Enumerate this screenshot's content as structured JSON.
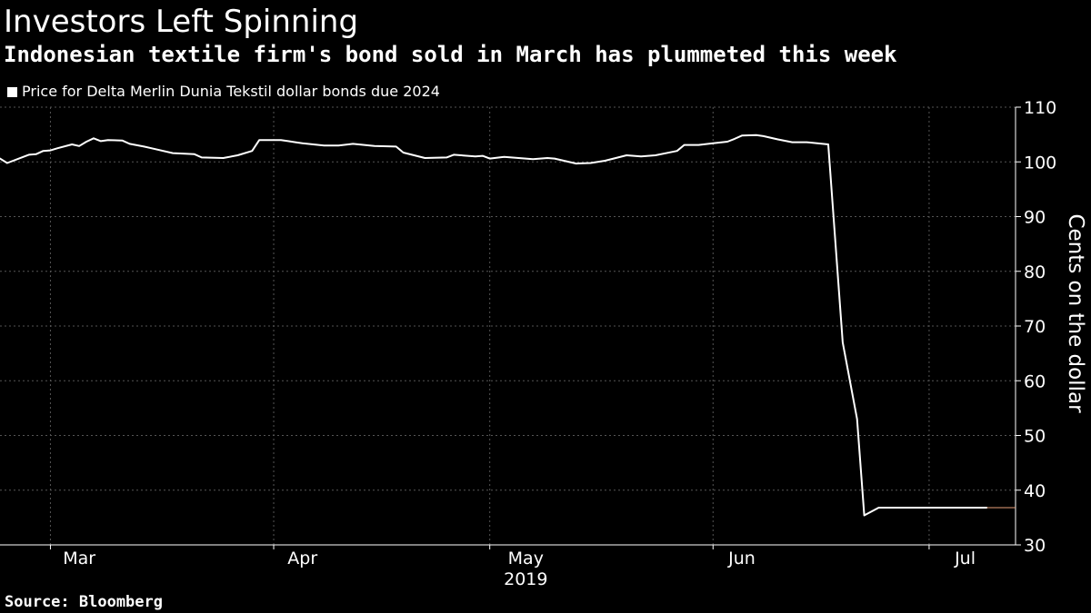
{
  "title": "Investors Left Spinning",
  "subtitle": "Indonesian textile firm's bond sold in March has plummeted this week",
  "source": "Source: Bloomberg",
  "colors": {
    "background": "#000000",
    "line": "#ffffff",
    "grid": "#555555",
    "last_marker": "#e8a07a"
  },
  "chart_data": {
    "type": "line",
    "title": "Investors Left Spinning",
    "subtitle": "Indonesian textile firm's bond sold in March has plummeted this week",
    "xlabel": "2019",
    "ylabel": "Cents on the dollar",
    "ylim": [
      30,
      110
    ],
    "yticks": [
      30,
      40,
      50,
      60,
      70,
      80,
      90,
      100,
      110
    ],
    "xlim": [
      "2019-02-22",
      "2019-07-13"
    ],
    "xtick_labels": [
      {
        "label": "Mar",
        "date": "2019-03-05"
      },
      {
        "label": "Apr",
        "date": "2019-04-05"
      },
      {
        "label": "May",
        "date": "2019-05-06"
      },
      {
        "label": "Jun",
        "date": "2019-06-05"
      },
      {
        "label": "Jul",
        "date": "2019-07-06"
      }
    ],
    "gridlines_x": [
      "2019-03-01",
      "2019-04-01",
      "2019-05-01",
      "2019-06-01",
      "2019-07-01"
    ],
    "year_label": "2019",
    "grid": true,
    "legend_position": "top-left",
    "series": [
      {
        "name": "Price for Delta Merlin Dunia Tekstil dollar bonds due 2024",
        "x": [
          "2019-02-22",
          "2019-02-23",
          "2019-02-25",
          "2019-02-26",
          "2019-02-27",
          "2019-02-28",
          "2019-03-01",
          "2019-03-02",
          "2019-03-04",
          "2019-03-05",
          "2019-03-06",
          "2019-03-07",
          "2019-03-08",
          "2019-03-09",
          "2019-03-11",
          "2019-03-12",
          "2019-03-14",
          "2019-03-15",
          "2019-03-18",
          "2019-03-21",
          "2019-03-22",
          "2019-03-25",
          "2019-03-27",
          "2019-03-29",
          "2019-03-30",
          "2019-04-01",
          "2019-04-02",
          "2019-04-03",
          "2019-04-04",
          "2019-04-05",
          "2019-04-08",
          "2019-04-10",
          "2019-04-12",
          "2019-04-15",
          "2019-04-18",
          "2019-04-19",
          "2019-04-22",
          "2019-04-25",
          "2019-04-26",
          "2019-04-29",
          "2019-04-30",
          "2019-05-01",
          "2019-05-03",
          "2019-05-06",
          "2019-05-07",
          "2019-05-08",
          "2019-05-09",
          "2019-05-10",
          "2019-05-13",
          "2019-05-15",
          "2019-05-17",
          "2019-05-20",
          "2019-05-22",
          "2019-05-24",
          "2019-05-27",
          "2019-05-28",
          "2019-05-30",
          "2019-06-01",
          "2019-06-03",
          "2019-06-04",
          "2019-06-05",
          "2019-06-07",
          "2019-06-08",
          "2019-06-10",
          "2019-06-12",
          "2019-06-14",
          "2019-06-17",
          "2019-06-19",
          "2019-06-21",
          "2019-06-22",
          "2019-06-24",
          "2019-06-26",
          "2019-06-28",
          "2019-06-30",
          "2019-07-01",
          "2019-07-02",
          "2019-07-04",
          "2019-07-05",
          "2019-07-06",
          "2019-07-09"
        ],
        "values": [
          100.6,
          99.8,
          100.8,
          101.3,
          101.4,
          102.0,
          102.1,
          102.5,
          103.2,
          102.9,
          103.7,
          104.3,
          103.8,
          104.0,
          103.9,
          103.3,
          102.8,
          102.5,
          101.6,
          101.4,
          100.8,
          100.7,
          101.2,
          102.0,
          104.0,
          104.0,
          104.0,
          103.8,
          103.6,
          103.4,
          103.0,
          103.0,
          103.3,
          102.9,
          102.8,
          101.7,
          100.7,
          100.8,
          101.3,
          101.0,
          101.1,
          100.6,
          100.9,
          100.6,
          100.5,
          100.6,
          100.7,
          100.6,
          99.7,
          99.8,
          100.2,
          101.2,
          101.0,
          101.2,
          102.0,
          103.1,
          103.1,
          103.4,
          103.7,
          104.2,
          104.8,
          104.9,
          104.7,
          104.1,
          103.6,
          103.6,
          103.2,
          67.0,
          53.0,
          35.4,
          36.8,
          36.8,
          36.8,
          36.8,
          36.8,
          36.8,
          36.8,
          36.8,
          36.8,
          36.8
        ]
      }
    ]
  }
}
